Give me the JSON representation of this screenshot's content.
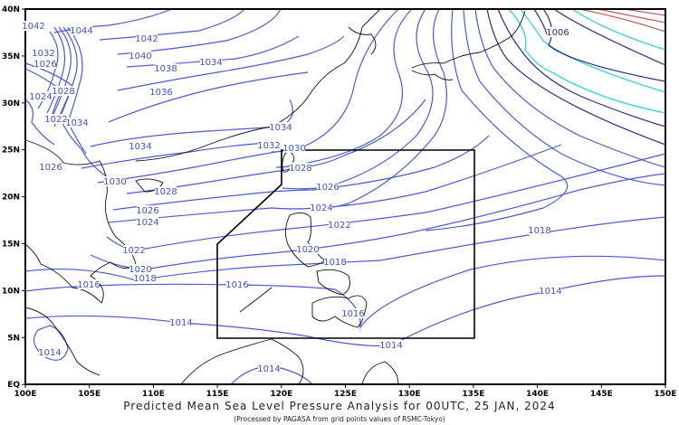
{
  "title": "Predicted Mean Sea Level Pressure Analysis for 00UTC, 25 JAN, 2024",
  "subtitle": "(Processed by PAGASA from grid points values of RSMC-Tokyo)",
  "axes": {
    "x_ticks": [
      "100E",
      "105E",
      "110E",
      "115E",
      "120E",
      "125E",
      "130E",
      "135E",
      "140E",
      "145E",
      "150E"
    ],
    "y_ticks": [
      "40N",
      "35N",
      "30N",
      "25N",
      "20N",
      "15N",
      "10N",
      "5N",
      "EQ"
    ]
  },
  "colors": {
    "isobar": "#4a5bd4",
    "isobar_low": "#2a2c86",
    "isobar_cyan": "#3fd2d2",
    "isobar_red": "#c0605c",
    "coastline": "#111111",
    "par_boundary": "#000000"
  },
  "isobar_labels": [
    "1044",
    "1042",
    "1040",
    "1038",
    "1036",
    "1034",
    "1034",
    "1034",
    "1032",
    "1030",
    "1028",
    "1026",
    "1024",
    "1022",
    "1020",
    "1018",
    "1016",
    "1016",
    "1014",
    "1014",
    "1014",
    "1014",
    "1016",
    "1018",
    "1020",
    "1022",
    "1024",
    "1026",
    "1028",
    "1030",
    "1026",
    "1018",
    "1014",
    "1006",
    "1042",
    "1032",
    "1026",
    "1028",
    "1024",
    "1022",
    "1034"
  ]
}
